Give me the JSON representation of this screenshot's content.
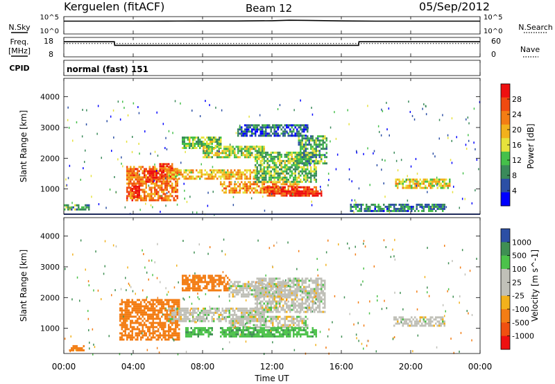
{
  "header": {
    "station": "Kerguelen (fitACF)",
    "beam": "Beam 12",
    "date": "05/Sep/2012"
  },
  "labels": {
    "nsky": "N.Sky",
    "nsearch": "N.Search",
    "freq": "Freq.",
    "mhz": "[MHz]",
    "nave": "Nave",
    "cpid": "CPID",
    "cpid_value": "normal (fast) 151"
  },
  "noise_axis": {
    "top": "10^5",
    "bottom": "10^0"
  },
  "freq_axis": {
    "left_ticks": [
      "18",
      "8"
    ],
    "right_ticks": [
      "60",
      "0"
    ]
  },
  "time_axis": {
    "label": "Time UT",
    "ticks": [
      "00:00",
      "04:00",
      "08:00",
      "12:00",
      "16:00",
      "20:00",
      "00:00"
    ]
  },
  "colors": {
    "power": [
      "#0000ff",
      "#2c4fa5",
      "#3a8a5a",
      "#45c04a",
      "#e6e23c",
      "#f2b11c",
      "#f37d14",
      "#f04a10",
      "#ee1010"
    ],
    "velocity": [
      "#2c4fa5",
      "#3f8f53",
      "#4cc24a",
      "#c0c0b8",
      "#c0c0b8",
      "#f2b11c",
      "#f37d14",
      "#f05010",
      "#ee1010"
    ]
  },
  "chart_data": [
    {
      "type": "line",
      "panel": "noise",
      "ylabel": "N.Sky",
      "y_scale": "log",
      "ylim": [
        "10^0",
        "10^5"
      ],
      "x": [
        "00:00",
        "02:00",
        "04:00",
        "06:00",
        "08:00",
        "10:00",
        "12:00",
        "13:00",
        "14:00",
        "16:00",
        "18:00",
        "20:00",
        "22:00",
        "24:00"
      ],
      "series": [
        {
          "name": "N.Sky",
          "values": [
            6300,
            6300,
            6500,
            6800,
            7000,
            7200,
            8500,
            12000,
            11000,
            7500,
            6500,
            6400,
            6300,
            6300
          ]
        }
      ]
    },
    {
      "type": "line",
      "panel": "frequency",
      "ylabel": "Freq. [MHz]",
      "ylim": [
        8,
        18
      ],
      "y2label": "Nave",
      "y2lim": [
        0,
        60
      ],
      "x": [
        "00:00",
        "02:55",
        "02:56",
        "17:00",
        "17:01",
        "24:00"
      ],
      "series": [
        {
          "name": "Freq.",
          "values": [
            16,
            16,
            14,
            14,
            16,
            16
          ]
        },
        {
          "name": "Nave",
          "values": [
            42,
            42,
            42,
            42,
            42,
            42
          ]
        }
      ]
    },
    {
      "type": "heatmap",
      "panel": "power",
      "ylabel": "Slant Range [km]",
      "xlabel": "",
      "xlim": [
        "00:00",
        "24:00"
      ],
      "ylim": [
        180,
        4600
      ],
      "yticks": [
        1000,
        2000,
        3000,
        4000
      ],
      "colorbar": {
        "label": "Power [dB]",
        "ticks": [
          "4",
          "8",
          "12",
          "16",
          "20",
          "24",
          "28"
        ],
        "range": [
          0,
          30
        ]
      },
      "regions": [
        {
          "t0": 3.6,
          "t1": 6.5,
          "r0": 600,
          "r1": 1700,
          "value": 22
        },
        {
          "t0": 3.9,
          "t1": 4.3,
          "r0": 700,
          "r1": 1100,
          "value": 30
        },
        {
          "t0": 4.8,
          "t1": 5.3,
          "r0": 1200,
          "r1": 1600,
          "value": 28
        },
        {
          "t0": 5.5,
          "t1": 6.2,
          "r0": 1300,
          "r1": 1800,
          "value": 26
        },
        {
          "t0": 6.0,
          "t1": 11.0,
          "r0": 1300,
          "r1": 1600,
          "value": 18
        },
        {
          "t0": 9.0,
          "t1": 13.5,
          "r0": 850,
          "r1": 1250,
          "value": 20
        },
        {
          "t0": 11.5,
          "t1": 14.5,
          "r0": 750,
          "r1": 1050,
          "value": 26
        },
        {
          "t0": 13.0,
          "t1": 14.8,
          "r0": 750,
          "r1": 900,
          "value": 28
        },
        {
          "t0": 6.8,
          "t1": 9.0,
          "r0": 2300,
          "r1": 2700,
          "value": 12
        },
        {
          "t0": 8.0,
          "t1": 11.5,
          "r0": 2000,
          "r1": 2400,
          "value": 14
        },
        {
          "t0": 11.0,
          "t1": 14.5,
          "r0": 1200,
          "r1": 2200,
          "value": 12
        },
        {
          "t0": 13.5,
          "t1": 15.1,
          "r0": 1800,
          "r1": 2700,
          "value": 10
        },
        {
          "t0": 10.0,
          "t1": 14.0,
          "r0": 2700,
          "r1": 3100,
          "value": 6
        },
        {
          "t0": 19.1,
          "t1": 22.3,
          "r0": 1000,
          "r1": 1300,
          "value": 16
        },
        {
          "t0": 16.5,
          "t1": 22.0,
          "r0": 250,
          "r1": 500,
          "value": 8
        },
        {
          "t0": 0.0,
          "t1": 1.5,
          "r0": 300,
          "r1": 500,
          "value": 10
        }
      ]
    },
    {
      "type": "heatmap",
      "panel": "velocity",
      "ylabel": "Slant Range [km]",
      "xlabel": "Time UT",
      "xlim": [
        "00:00",
        "24:00"
      ],
      "ylim": [
        180,
        4600
      ],
      "yticks": [
        1000,
        2000,
        3000,
        4000
      ],
      "colorbar": {
        "label": "Velocity [m s^-1]",
        "ticks": [
          "1000",
          "500",
          "100",
          "25",
          "-25",
          "-100",
          "-500",
          "-1000"
        ],
        "range": [
          -1000,
          1000
        ]
      },
      "regions": [
        {
          "t0": 3.2,
          "t1": 6.6,
          "r0": 600,
          "r1": 1900,
          "value": -300
        },
        {
          "t0": 6.0,
          "t1": 11.5,
          "r0": 1200,
          "r1": 1650,
          "value": 0
        },
        {
          "t0": 9.5,
          "t1": 14.0,
          "r0": 1000,
          "r1": 1400,
          "value": 0
        },
        {
          "t0": 11.0,
          "t1": 15.0,
          "r0": 1500,
          "r1": 2600,
          "value": 0
        },
        {
          "t0": 6.8,
          "t1": 9.5,
          "r0": 2200,
          "r1": 2700,
          "value": -200
        },
        {
          "t0": 9.0,
          "t1": 14.5,
          "r0": 700,
          "r1": 1000,
          "value": 80
        },
        {
          "t0": 7.0,
          "t1": 8.5,
          "r0": 700,
          "r1": 1000,
          "value": 80
        },
        {
          "t0": 9.5,
          "t1": 13.0,
          "r0": 2000,
          "r1": 2500,
          "value": 0
        },
        {
          "t0": 19.0,
          "t1": 22.0,
          "r0": 1050,
          "r1": 1350,
          "value": 0
        },
        {
          "t0": 0.3,
          "t1": 1.2,
          "r0": 250,
          "r1": 450,
          "value": -150
        }
      ]
    }
  ]
}
